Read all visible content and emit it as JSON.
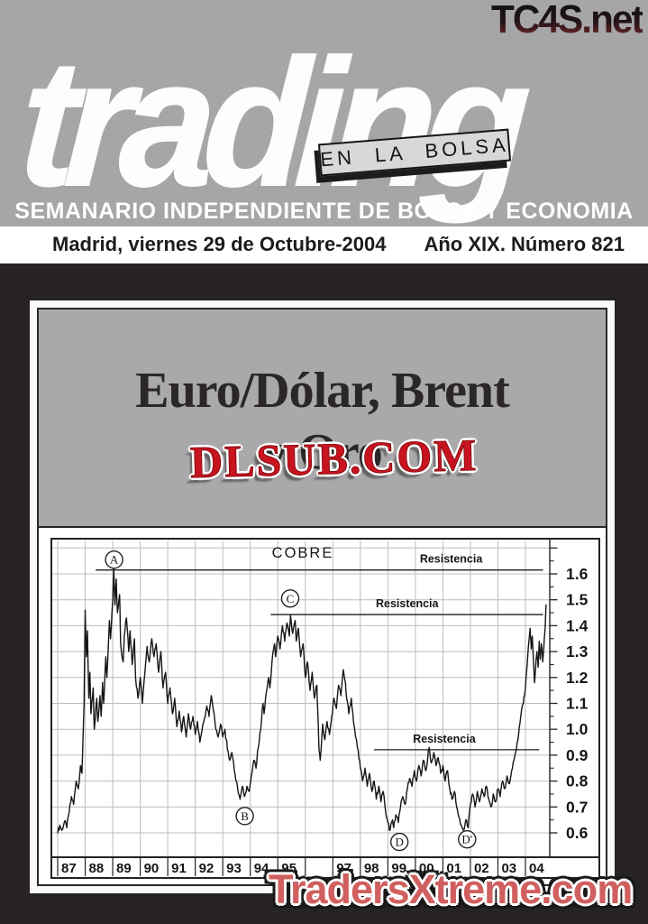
{
  "masthead": {
    "site_url": "TC4S.net",
    "logo_text": "trading",
    "badge_text": "EN LA BOLSA",
    "tagline": "SEMANARIO INDEPENDIENTE DE BOLSA Y ECONOMIA"
  },
  "dateline": {
    "place_date": "Madrid, viernes 29 de Octubre-2004",
    "issue": "Año XIX. Número 821"
  },
  "cover_story": {
    "title_line1": "Euro/Dólar, Brent",
    "title_line2": "y Oro",
    "overlay_watermark": "DLSUB.COM"
  },
  "footer_watermark": "TradersXtreme.com",
  "colors": {
    "masthead_gray": "#a6a6a9",
    "page_black": "#272223",
    "panel_gray": "#a9a9ab",
    "badge_bg": "#d8d8da",
    "sticker_red": "#c8141f",
    "footer_red": "#d05f5f",
    "tc4s_gradient_top": "#131313",
    "tc4s_gradient_bottom": "#6e2822",
    "grid_gray": "#bcbcbc",
    "line_black": "#161616"
  },
  "chart_data": {
    "type": "line",
    "title": "COBRE",
    "xlabel": "",
    "ylabel": "",
    "grid": true,
    "y_axis_side": "right",
    "xlim": [
      1986.8,
      2004.9
    ],
    "ylim": [
      0.5,
      1.72
    ],
    "y_tick_values": [
      1.6,
      1.5,
      1.4,
      1.3,
      1.2,
      1.1,
      1.0,
      0.9,
      0.8,
      0.7,
      0.6
    ],
    "y_tick_labels": [
      "1.6",
      "1.5",
      "1.4",
      "1.3",
      "1.2",
      "1.1",
      "1.0",
      "0.9",
      "0.8",
      "0.7",
      "0.6"
    ],
    "x_tick_years": [
      1987,
      1988,
      1989,
      1990,
      1991,
      1992,
      1993,
      1994,
      1995,
      1996,
      1997,
      1998,
      1999,
      2000,
      2001,
      2002,
      2003,
      2004
    ],
    "x_tick_labels": [
      "87",
      "88",
      "89",
      "90",
      "91",
      "92",
      "93",
      "94",
      "95",
      "",
      "97",
      "98",
      "99",
      "00",
      "01",
      "02",
      "03",
      "04"
    ],
    "resistance_lines": [
      {
        "label": "Resistencia",
        "value": 1.615,
        "from": 1988.38,
        "to": 2004.64,
        "label_year": 2001.3
      },
      {
        "label": "Resistencia",
        "value": 1.443,
        "from": 1994.74,
        "to": 2004.64,
        "label_year": 1999.7
      },
      {
        "label": "Resistencia",
        "value": 0.921,
        "from": 1998.5,
        "to": 2004.5,
        "label_year": 2001.05
      }
    ],
    "annotations": [
      {
        "label": "A",
        "year": 1989.05,
        "value": 1.655
      },
      {
        "label": "B",
        "year": 1993.8,
        "value": 0.665
      },
      {
        "label": "C",
        "year": 1995.45,
        "value": 1.505
      },
      {
        "label": "D",
        "year": 1999.42,
        "value": 0.565
      },
      {
        "label": "D'",
        "year": 2001.88,
        "value": 0.575
      }
    ],
    "series": [
      {
        "name": "COBRE",
        "points": [
          [
            1987.0,
            0.6
          ],
          [
            1987.08,
            0.63
          ],
          [
            1987.15,
            0.61
          ],
          [
            1987.25,
            0.645
          ],
          [
            1987.33,
            0.62
          ],
          [
            1987.42,
            0.68
          ],
          [
            1987.5,
            0.74
          ],
          [
            1987.58,
            0.71
          ],
          [
            1987.67,
            0.8
          ],
          [
            1987.75,
            0.77
          ],
          [
            1987.83,
            0.86
          ],
          [
            1987.88,
            0.83
          ],
          [
            1987.96,
            1.1
          ],
          [
            1988.0,
            1.46
          ],
          [
            1988.04,
            1.28
          ],
          [
            1988.08,
            1.38
          ],
          [
            1988.13,
            1.12
          ],
          [
            1988.17,
            1.22
          ],
          [
            1988.21,
            1.06
          ],
          [
            1988.29,
            1.16
          ],
          [
            1988.33,
            1.0
          ],
          [
            1988.42,
            1.12
          ],
          [
            1988.46,
            1.03
          ],
          [
            1988.54,
            1.13
          ],
          [
            1988.58,
            1.05
          ],
          [
            1988.63,
            1.18
          ],
          [
            1988.67,
            1.1
          ],
          [
            1988.75,
            1.28
          ],
          [
            1988.79,
            1.2
          ],
          [
            1988.88,
            1.42
          ],
          [
            1988.92,
            1.35
          ],
          [
            1989.0,
            1.5
          ],
          [
            1989.04,
            1.62
          ],
          [
            1989.08,
            1.48
          ],
          [
            1989.13,
            1.58
          ],
          [
            1989.17,
            1.45
          ],
          [
            1989.25,
            1.52
          ],
          [
            1989.29,
            1.33
          ],
          [
            1989.38,
            1.26
          ],
          [
            1989.42,
            1.36
          ],
          [
            1989.5,
            1.43
          ],
          [
            1989.58,
            1.3
          ],
          [
            1989.63,
            1.38
          ],
          [
            1989.71,
            1.25
          ],
          [
            1989.79,
            1.35
          ],
          [
            1989.83,
            1.2
          ],
          [
            1989.92,
            1.12
          ],
          [
            1990.0,
            1.2
          ],
          [
            1990.08,
            1.1
          ],
          [
            1990.17,
            1.22
          ],
          [
            1990.25,
            1.32
          ],
          [
            1990.33,
            1.26
          ],
          [
            1990.42,
            1.35
          ],
          [
            1990.5,
            1.28
          ],
          [
            1990.58,
            1.33
          ],
          [
            1990.67,
            1.22
          ],
          [
            1990.75,
            1.3
          ],
          [
            1990.83,
            1.16
          ],
          [
            1990.92,
            1.22
          ],
          [
            1991.0,
            1.1
          ],
          [
            1991.08,
            1.16
          ],
          [
            1991.17,
            1.06
          ],
          [
            1991.25,
            1.12
          ],
          [
            1991.33,
            1.01
          ],
          [
            1991.42,
            1.07
          ],
          [
            1991.5,
            0.99
          ],
          [
            1991.58,
            1.05
          ],
          [
            1991.67,
            0.97
          ],
          [
            1991.75,
            1.06
          ],
          [
            1991.83,
            1.0
          ],
          [
            1991.92,
            1.05
          ],
          [
            1992.0,
            0.98
          ],
          [
            1992.08,
            1.03
          ],
          [
            1992.17,
            0.95
          ],
          [
            1992.25,
            1.0
          ],
          [
            1992.33,
            1.04
          ],
          [
            1992.42,
            1.09
          ],
          [
            1992.5,
            1.05
          ],
          [
            1992.58,
            1.13
          ],
          [
            1992.67,
            1.07
          ],
          [
            1992.75,
            1.0
          ],
          [
            1992.83,
            0.97
          ],
          [
            1992.92,
            1.02
          ],
          [
            1993.0,
            0.97
          ],
          [
            1993.08,
            1.0
          ],
          [
            1993.17,
            0.92
          ],
          [
            1993.25,
            0.88
          ],
          [
            1993.33,
            0.91
          ],
          [
            1993.42,
            0.84
          ],
          [
            1993.5,
            0.8
          ],
          [
            1993.54,
            0.77
          ],
          [
            1993.63,
            0.73
          ],
          [
            1993.71,
            0.78
          ],
          [
            1993.79,
            0.74
          ],
          [
            1993.88,
            0.78
          ],
          [
            1993.96,
            0.76
          ],
          [
            1994.04,
            0.82
          ],
          [
            1994.13,
            0.88
          ],
          [
            1994.21,
            0.85
          ],
          [
            1994.29,
            0.93
          ],
          [
            1994.38,
            1.0
          ],
          [
            1994.46,
            1.1
          ],
          [
            1994.5,
            1.06
          ],
          [
            1994.58,
            1.14
          ],
          [
            1994.67,
            1.2
          ],
          [
            1994.71,
            1.16
          ],
          [
            1994.79,
            1.26
          ],
          [
            1994.88,
            1.33
          ],
          [
            1994.92,
            1.28
          ],
          [
            1995.0,
            1.36
          ],
          [
            1995.08,
            1.31
          ],
          [
            1995.17,
            1.4
          ],
          [
            1995.25,
            1.34
          ],
          [
            1995.33,
            1.41
          ],
          [
            1995.42,
            1.36
          ],
          [
            1995.46,
            1.44
          ],
          [
            1995.54,
            1.37
          ],
          [
            1995.63,
            1.42
          ],
          [
            1995.67,
            1.34
          ],
          [
            1995.75,
            1.39
          ],
          [
            1995.83,
            1.28
          ],
          [
            1995.92,
            1.33
          ],
          [
            1996.0,
            1.2
          ],
          [
            1996.08,
            1.26
          ],
          [
            1996.17,
            1.15
          ],
          [
            1996.25,
            1.22
          ],
          [
            1996.33,
            1.12
          ],
          [
            1996.42,
            1.17
          ],
          [
            1996.46,
            1.05
          ],
          [
            1996.5,
            0.92
          ],
          [
            1996.54,
            0.88
          ],
          [
            1996.63,
            1.02
          ],
          [
            1996.71,
            0.96
          ],
          [
            1996.79,
            1.03
          ],
          [
            1996.88,
            0.98
          ],
          [
            1996.96,
            1.05
          ],
          [
            1997.04,
            1.12
          ],
          [
            1997.13,
            1.08
          ],
          [
            1997.21,
            1.17
          ],
          [
            1997.29,
            1.13
          ],
          [
            1997.38,
            1.23
          ],
          [
            1997.46,
            1.18
          ],
          [
            1997.5,
            1.12
          ],
          [
            1997.58,
            1.06
          ],
          [
            1997.67,
            1.12
          ],
          [
            1997.75,
            1.03
          ],
          [
            1997.83,
            0.97
          ],
          [
            1997.92,
            0.92
          ],
          [
            1998.0,
            0.85
          ],
          [
            1998.08,
            0.8
          ],
          [
            1998.17,
            0.85
          ],
          [
            1998.25,
            0.78
          ],
          [
            1998.33,
            0.83
          ],
          [
            1998.42,
            0.76
          ],
          [
            1998.5,
            0.8
          ],
          [
            1998.58,
            0.73
          ],
          [
            1998.67,
            0.78
          ],
          [
            1998.75,
            0.72
          ],
          [
            1998.83,
            0.76
          ],
          [
            1998.92,
            0.68
          ],
          [
            1999.0,
            0.64
          ],
          [
            1999.08,
            0.61
          ],
          [
            1999.17,
            0.65
          ],
          [
            1999.21,
            0.62
          ],
          [
            1999.29,
            0.67
          ],
          [
            1999.38,
            0.64
          ],
          [
            1999.46,
            0.7
          ],
          [
            1999.54,
            0.74
          ],
          [
            1999.63,
            0.71
          ],
          [
            1999.71,
            0.77
          ],
          [
            1999.79,
            0.81
          ],
          [
            1999.88,
            0.78
          ],
          [
            1999.96,
            0.84
          ],
          [
            2000.04,
            0.8
          ],
          [
            2000.13,
            0.86
          ],
          [
            2000.21,
            0.82
          ],
          [
            2000.29,
            0.88
          ],
          [
            2000.38,
            0.84
          ],
          [
            2000.46,
            0.9
          ],
          [
            2000.5,
            0.93
          ],
          [
            2000.58,
            0.87
          ],
          [
            2000.67,
            0.91
          ],
          [
            2000.75,
            0.86
          ],
          [
            2000.83,
            0.89
          ],
          [
            2000.92,
            0.83
          ],
          [
            2001.0,
            0.86
          ],
          [
            2001.08,
            0.8
          ],
          [
            2001.17,
            0.84
          ],
          [
            2001.25,
            0.77
          ],
          [
            2001.33,
            0.73
          ],
          [
            2001.42,
            0.76
          ],
          [
            2001.5,
            0.7
          ],
          [
            2001.58,
            0.66
          ],
          [
            2001.67,
            0.63
          ],
          [
            2001.75,
            0.61
          ],
          [
            2001.83,
            0.65
          ],
          [
            2001.92,
            0.62
          ],
          [
            2002.0,
            0.71
          ],
          [
            2002.08,
            0.75
          ],
          [
            2002.17,
            0.7
          ],
          [
            2002.25,
            0.76
          ],
          [
            2002.33,
            0.72
          ],
          [
            2002.42,
            0.77
          ],
          [
            2002.5,
            0.74
          ],
          [
            2002.58,
            0.78
          ],
          [
            2002.67,
            0.73
          ],
          [
            2002.75,
            0.7
          ],
          [
            2002.83,
            0.75
          ],
          [
            2002.92,
            0.72
          ],
          [
            2003.0,
            0.77
          ],
          [
            2003.08,
            0.74
          ],
          [
            2003.17,
            0.8
          ],
          [
            2003.25,
            0.77
          ],
          [
            2003.33,
            0.82
          ],
          [
            2003.42,
            0.79
          ],
          [
            2003.5,
            0.84
          ],
          [
            2003.58,
            0.88
          ],
          [
            2003.67,
            0.92
          ],
          [
            2003.75,
            0.98
          ],
          [
            2003.83,
            1.05
          ],
          [
            2003.92,
            1.1
          ],
          [
            2004.0,
            1.16
          ],
          [
            2004.08,
            1.28
          ],
          [
            2004.17,
            1.39
          ],
          [
            2004.21,
            1.31
          ],
          [
            2004.25,
            1.36
          ],
          [
            2004.33,
            1.18
          ],
          [
            2004.42,
            1.3
          ],
          [
            2004.46,
            1.24
          ],
          [
            2004.5,
            1.34
          ],
          [
            2004.54,
            1.27
          ],
          [
            2004.58,
            1.33
          ],
          [
            2004.63,
            1.26
          ],
          [
            2004.67,
            1.32
          ],
          [
            2004.71,
            1.38
          ],
          [
            2004.75,
            1.48
          ]
        ]
      }
    ]
  }
}
